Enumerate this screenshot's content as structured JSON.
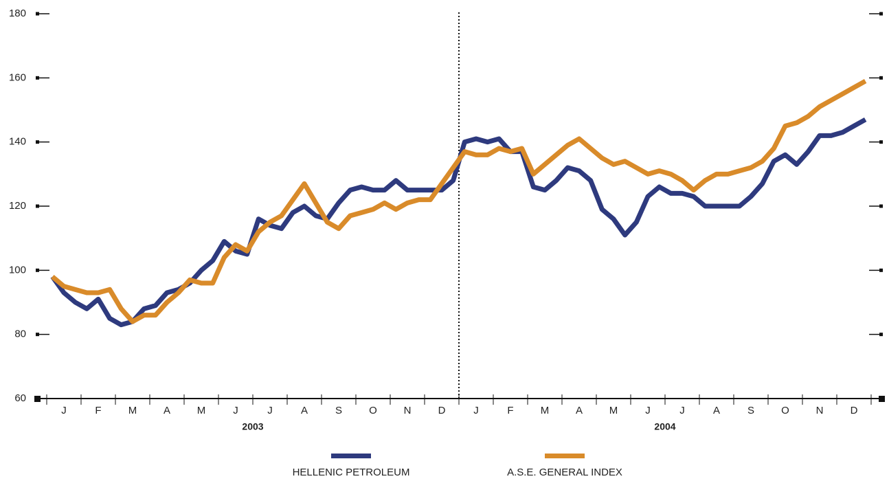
{
  "chart_data": {
    "type": "line",
    "categories": [
      null,
      "J",
      null,
      null,
      "F",
      null,
      null,
      "M",
      null,
      null,
      "A",
      null,
      null,
      "M",
      null,
      null,
      "J",
      null,
      null,
      "J",
      null,
      null,
      "A",
      null,
      null,
      "S",
      null,
      null,
      "O",
      null,
      null,
      "N",
      null,
      null,
      "D",
      null,
      null,
      "J",
      null,
      null,
      "F",
      null,
      null,
      "M",
      null,
      null,
      "A",
      null,
      null,
      "M",
      null,
      null,
      "J",
      null,
      null,
      "J",
      null,
      null,
      "A",
      null,
      null,
      "S",
      null,
      null,
      "O",
      null,
      null,
      "N",
      null,
      null,
      "D",
      null
    ],
    "years": [
      "2003",
      "2004"
    ],
    "series": [
      {
        "name": "HELLENIC PETROLEUM",
        "color": "#2e3a7e",
        "values": [
          98,
          93,
          90,
          88,
          91,
          85,
          83,
          84,
          88,
          89,
          93,
          94,
          96,
          100,
          103,
          109,
          106,
          105,
          116,
          114,
          113,
          118,
          120,
          117,
          116,
          121,
          125,
          126,
          125,
          125,
          128,
          125,
          125,
          125,
          125,
          128,
          140,
          141,
          140,
          141,
          137,
          137,
          126,
          125,
          128,
          132,
          131,
          128,
          119,
          116,
          111,
          115,
          123,
          126,
          124,
          124,
          123,
          120,
          120,
          120,
          120,
          123,
          127,
          134,
          136,
          133,
          137,
          142,
          142,
          143,
          145,
          147
        ]
      },
      {
        "name": "A.S.E. GENERAL INDEX",
        "color": "#d98b2a",
        "values": [
          98,
          95,
          94,
          93,
          93,
          94,
          88,
          84,
          86,
          86,
          90,
          93,
          97,
          96,
          96,
          104,
          108,
          106,
          112,
          115,
          117,
          122,
          127,
          121,
          115,
          113,
          117,
          118,
          119,
          121,
          119,
          121,
          122,
          122,
          127,
          132,
          137,
          136,
          136,
          138,
          137,
          138,
          130,
          133,
          136,
          139,
          141,
          138,
          135,
          133,
          134,
          132,
          130,
          131,
          130,
          128,
          125,
          128,
          130,
          130,
          131,
          132,
          134,
          138,
          145,
          146,
          148,
          151,
          153,
          155,
          157,
          159
        ]
      }
    ],
    "ylim": [
      60,
      180
    ],
    "yticks": [
      60,
      80,
      100,
      120,
      140,
      160,
      180
    ]
  }
}
